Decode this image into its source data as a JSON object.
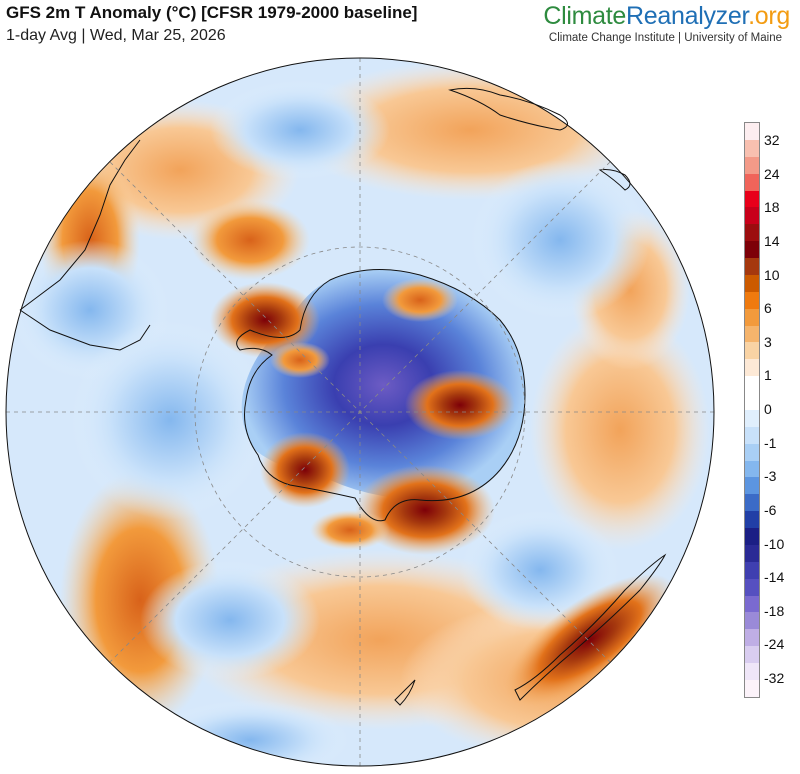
{
  "header": {
    "title": "GFS 2m T Anomaly (°C) [CFSR 1979-2000 baseline]",
    "subtitle": "1-day Avg | Wed, Mar 25, 2026"
  },
  "branding": {
    "name_part1": "Climate",
    "name_part2": "Reanalyzer",
    "name_part3": ".org",
    "affiliation": "Climate Change Institute | University of Maine"
  },
  "map": {
    "projection": "south-polar-stereographic",
    "description_regions": {
      "antarctic_interior": "cold",
      "east_antarctic_coast": "warm",
      "ross_sea_region": "warm"
    }
  },
  "legend": {
    "unit": "°C",
    "labels": [
      "32",
      "24",
      "18",
      "14",
      "10",
      "6",
      "3",
      "1",
      "0",
      "-1",
      "-3",
      "-6",
      "-10",
      "-14",
      "-18",
      "-24",
      "-32"
    ],
    "colors": [
      "#fdeef0",
      "#f8c0b0",
      "#f39a88",
      "#f0645a",
      "#e8001a",
      "#c8001a",
      "#9c0d0f",
      "#7d0008",
      "#a5380e",
      "#cc5a00",
      "#ef7a0f",
      "#f29a3c",
      "#f5b46c",
      "#f9d3a4",
      "#fde9d6",
      "#ffffff",
      "#ffffff",
      "#e0effd",
      "#c8e1fa",
      "#a9cff5",
      "#84b7ee",
      "#5c95e0",
      "#3b6bc7",
      "#213fa6",
      "#1b1f85",
      "#2a2a95",
      "#3f3fb0",
      "#5650c0",
      "#7a6ad0",
      "#9a8ad8",
      "#bfaee5",
      "#d9cdf0",
      "#efe6f8",
      "#fcf3fa"
    ]
  }
}
